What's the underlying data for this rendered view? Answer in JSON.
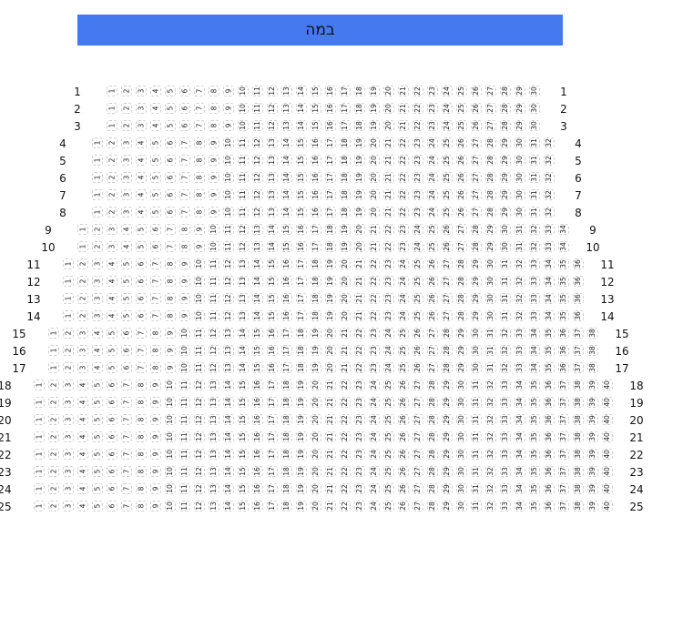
{
  "stage": {
    "label": "במה",
    "color": "#4479ef"
  },
  "rows": [
    {
      "label": "1",
      "seats": 30
    },
    {
      "label": "2",
      "seats": 30
    },
    {
      "label": "3",
      "seats": 30
    },
    {
      "label": "4",
      "seats": 32
    },
    {
      "label": "5",
      "seats": 32
    },
    {
      "label": "6",
      "seats": 32
    },
    {
      "label": "7",
      "seats": 32
    },
    {
      "label": "8",
      "seats": 32
    },
    {
      "label": "9",
      "seats": 34
    },
    {
      "label": "10",
      "seats": 34
    },
    {
      "label": "11",
      "seats": 36
    },
    {
      "label": "12",
      "seats": 36
    },
    {
      "label": "13",
      "seats": 36
    },
    {
      "label": "14",
      "seats": 36
    },
    {
      "label": "15",
      "seats": 38
    },
    {
      "label": "16",
      "seats": 38
    },
    {
      "label": "17",
      "seats": 38
    },
    {
      "label": "18",
      "seats": 40
    },
    {
      "label": "19",
      "seats": 40
    },
    {
      "label": "20",
      "seats": 40
    },
    {
      "label": "21",
      "seats": 40
    },
    {
      "label": "22",
      "seats": 40
    },
    {
      "label": "23",
      "seats": 40
    },
    {
      "label": "24",
      "seats": 40
    },
    {
      "label": "25",
      "seats": 40
    }
  ]
}
